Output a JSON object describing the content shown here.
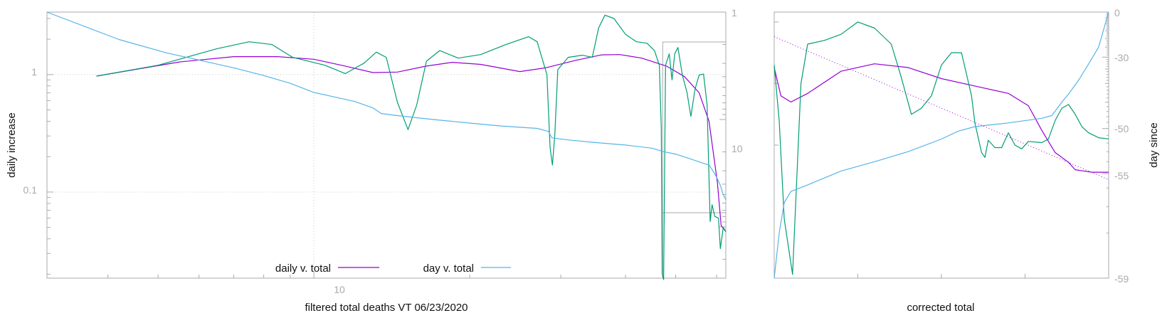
{
  "colors": {
    "daily": "#9400d3",
    "day": "#56b4e9",
    "raw": "#009e73",
    "frame": "#aaaaaa",
    "text": "#111111"
  },
  "chart_data": [
    {
      "type": "line",
      "title": "",
      "xlabel": "filtered total deaths VT 06/23/2020",
      "ylabel": "daily increase",
      "y2label": "",
      "x_scale": "log",
      "y_scale": "log",
      "y2_scale": "log",
      "xlim": [
        3.05,
        62.5
      ],
      "ylim": [
        0.0185,
        3.4
      ],
      "y2lim": [
        1,
        300
      ],
      "x_ticks": [
        "10"
      ],
      "y_ticks": [
        "1",
        "0.1"
      ],
      "y2_ticks": [
        "1",
        "10"
      ],
      "grid": true,
      "legend": {
        "placement": "bottom-center",
        "entries": [
          "daily v. total",
          "day v. total"
        ]
      },
      "series": [
        {
          "name": "daily v. total",
          "color": "#9400d3",
          "points": [
            [
              3.8,
              0.97
            ],
            [
              4.5,
              1.1
            ],
            [
              5.5,
              1.28
            ],
            [
              7,
              1.42
            ],
            [
              8.5,
              1.42
            ],
            [
              10,
              1.35
            ],
            [
              11.5,
              1.18
            ],
            [
              13,
              1.04
            ],
            [
              14.5,
              1.05
            ],
            [
              16.5,
              1.18
            ],
            [
              18.5,
              1.27
            ],
            [
              21,
              1.22
            ],
            [
              25,
              1.06
            ],
            [
              28,
              1.14
            ],
            [
              32,
              1.32
            ],
            [
              36,
              1.47
            ],
            [
              39,
              1.48
            ],
            [
              43,
              1.38
            ],
            [
              48,
              1.18
            ],
            [
              52,
              0.96
            ],
            [
              55.5,
              0.7
            ],
            [
              58,
              0.4
            ],
            [
              60.2,
              0.12
            ],
            [
              61.2,
              0.052
            ],
            [
              62.5,
              0.046
            ]
          ]
        },
        {
          "name": "",
          "color": "#009e73",
          "points": [
            [
              3.8,
              0.97
            ],
            [
              5,
              1.2
            ],
            [
              6.5,
              1.66
            ],
            [
              7.5,
              1.9
            ],
            [
              8.3,
              1.8
            ],
            [
              9.1,
              1.4
            ],
            [
              10.5,
              1.2
            ],
            [
              11.5,
              1.02
            ],
            [
              12.5,
              1.25
            ],
            [
              13.2,
              1.55
            ],
            [
              13.8,
              1.4
            ],
            [
              14.5,
              0.58
            ],
            [
              15.2,
              0.34
            ],
            [
              15.8,
              0.55
            ],
            [
              16.5,
              1.3
            ],
            [
              17.5,
              1.6
            ],
            [
              19,
              1.38
            ],
            [
              21,
              1.48
            ],
            [
              23.5,
              1.8
            ],
            [
              26,
              2.1
            ],
            [
              27,
              1.9
            ],
            [
              28.2,
              1.0
            ],
            [
              28.6,
              0.24
            ],
            [
              28.9,
              0.17
            ],
            [
              29.2,
              0.3
            ],
            [
              29.6,
              1.1
            ],
            [
              31,
              1.4
            ],
            [
              33,
              1.46
            ],
            [
              34.5,
              1.4
            ],
            [
              35.5,
              2.5
            ],
            [
              36.5,
              3.2
            ],
            [
              38,
              3.0
            ],
            [
              40,
              2.2
            ],
            [
              42,
              1.9
            ],
            [
              44,
              1.85
            ],
            [
              45.5,
              1.6
            ],
            [
              46.5,
              1.2
            ],
            [
              46.9,
              0.35
            ],
            [
              47.1,
              0.02
            ],
            [
              47.4,
              0.018
            ],
            [
              47.8,
              1.2
            ],
            [
              48.6,
              1.5
            ],
            [
              49.2,
              0.9
            ],
            [
              49.8,
              1.5
            ],
            [
              50.5,
              1.7
            ],
            [
              51.5,
              1.0
            ],
            [
              52.6,
              0.7
            ],
            [
              53.5,
              0.44
            ],
            [
              54.5,
              0.75
            ],
            [
              55.5,
              0.99
            ],
            [
              56.6,
              1.01
            ],
            [
              57.5,
              0.55
            ],
            [
              58.3,
              0.056
            ],
            [
              58.8,
              0.078
            ],
            [
              59.5,
              0.062
            ],
            [
              60.5,
              0.06
            ],
            [
              61,
              0.033
            ],
            [
              61.8,
              0.05
            ],
            [
              62.5,
              0.046
            ]
          ]
        },
        {
          "name": "day v. total",
          "color": "#56b4e9",
          "points": [
            [
              3.05,
              1
            ],
            [
              4.2,
              1.8
            ],
            [
              5.2,
              2.4
            ],
            [
              6.2,
              2.9
            ],
            [
              7,
              3.3
            ],
            [
              8,
              3.9
            ],
            [
              9,
              4.6
            ],
            [
              10,
              5.6
            ],
            [
              11,
              6.2
            ],
            [
              12,
              6.8
            ],
            [
              13,
              7.8
            ],
            [
              13.5,
              8.8
            ],
            [
              14.5,
              9.2
            ],
            [
              17,
              10
            ],
            [
              20,
              10.8
            ],
            [
              23,
              11.5
            ],
            [
              27,
              12.1
            ],
            [
              28.4,
              12.9
            ],
            [
              28.8,
              14.8
            ],
            [
              31,
              15.5
            ],
            [
              35,
              16.4
            ],
            [
              40,
              17.3
            ],
            [
              45,
              18.5
            ],
            [
              47.5,
              20
            ],
            [
              50,
              21
            ],
            [
              53,
              23
            ],
            [
              56.5,
              25.5
            ],
            [
              58,
              26.5
            ],
            [
              59,
              30
            ],
            [
              60,
              34.5
            ],
            [
              61,
              41
            ],
            [
              61.8,
              50
            ],
            [
              62.5,
              56
            ]
          ]
        }
      ]
    },
    {
      "type": "line",
      "title": "",
      "xlabel": "corrected total",
      "ylabel": "",
      "y2label": "day since",
      "y2_ticks": [
        "0",
        "-30",
        "-50",
        "-55",
        "-59"
      ],
      "y2lim": [
        -59,
        0
      ],
      "grid": false,
      "series": [
        {
          "name": "",
          "color": "#9400d3",
          "points": [
            [
              0,
              0.63
            ],
            [
              0.02,
              0.4
            ],
            [
              0.05,
              0.35
            ],
            [
              0.1,
              0.42
            ],
            [
              0.2,
              0.6
            ],
            [
              0.3,
              0.66
            ],
            [
              0.4,
              0.63
            ],
            [
              0.5,
              0.54
            ],
            [
              0.6,
              0.48
            ],
            [
              0.7,
              0.42
            ],
            [
              0.76,
              0.32
            ],
            [
              0.8,
              0.12
            ],
            [
              0.84,
              -0.06
            ],
            [
              0.88,
              -0.14
            ],
            [
              0.9,
              -0.2
            ],
            [
              0.95,
              -0.22
            ],
            [
              1.0,
              -0.22
            ]
          ]
        },
        {
          "name": "",
          "color": "#009e73",
          "points": [
            [
              0,
              0.65
            ],
            [
              0.015,
              0.2
            ],
            [
              0.03,
              -0.6
            ],
            [
              0.055,
              -1.05
            ],
            [
              0.08,
              0.5
            ],
            [
              0.1,
              0.82
            ],
            [
              0.15,
              0.85
            ],
            [
              0.2,
              0.9
            ],
            [
              0.25,
              1.0
            ],
            [
              0.3,
              0.95
            ],
            [
              0.35,
              0.82
            ],
            [
              0.38,
              0.55
            ],
            [
              0.41,
              0.25
            ],
            [
              0.44,
              0.3
            ],
            [
              0.47,
              0.4
            ],
            [
              0.5,
              0.65
            ],
            [
              0.53,
              0.75
            ],
            [
              0.56,
              0.75
            ],
            [
              0.59,
              0.4
            ],
            [
              0.6,
              0.18
            ],
            [
              0.62,
              -0.06
            ],
            [
              0.63,
              -0.1
            ],
            [
              0.64,
              0.04
            ],
            [
              0.66,
              -0.02
            ],
            [
              0.68,
              -0.02
            ],
            [
              0.7,
              0.1
            ],
            [
              0.72,
              0.0
            ],
            [
              0.74,
              -0.03
            ],
            [
              0.76,
              0.03
            ],
            [
              0.8,
              0.02
            ],
            [
              0.82,
              0.05
            ],
            [
              0.84,
              0.2
            ],
            [
              0.86,
              0.3
            ],
            [
              0.88,
              0.33
            ],
            [
              0.9,
              0.25
            ],
            [
              0.92,
              0.15
            ],
            [
              0.94,
              0.1
            ],
            [
              0.97,
              0.06
            ],
            [
              1.0,
              0.05
            ]
          ]
        },
        {
          "name": "",
          "color": "#56b4e9",
          "points": [
            [
              0,
              -59
            ],
            [
              0.015,
              -58
            ],
            [
              0.03,
              -56.8
            ],
            [
              0.05,
              -56.2
            ],
            [
              0.1,
              -55.8
            ],
            [
              0.2,
              -54.8
            ],
            [
              0.3,
              -54
            ],
            [
              0.4,
              -53
            ],
            [
              0.5,
              -51.5
            ],
            [
              0.55,
              -50.4
            ],
            [
              0.6,
              -49.7
            ],
            [
              0.7,
              -49.1
            ],
            [
              0.8,
              -48.3
            ],
            [
              0.83,
              -47.8
            ],
            [
              0.86,
              -45
            ],
            [
              0.88,
              -43
            ],
            [
              0.91,
              -39
            ],
            [
              0.94,
              -33
            ],
            [
              0.97,
              -25
            ],
            [
              1.0,
              0
            ]
          ]
        },
        {
          "name": "",
          "color": "#9400d3",
          "dotted": true,
          "points": [
            [
              0,
              0.88
            ],
            [
              1,
              -0.28
            ]
          ]
        }
      ]
    }
  ]
}
